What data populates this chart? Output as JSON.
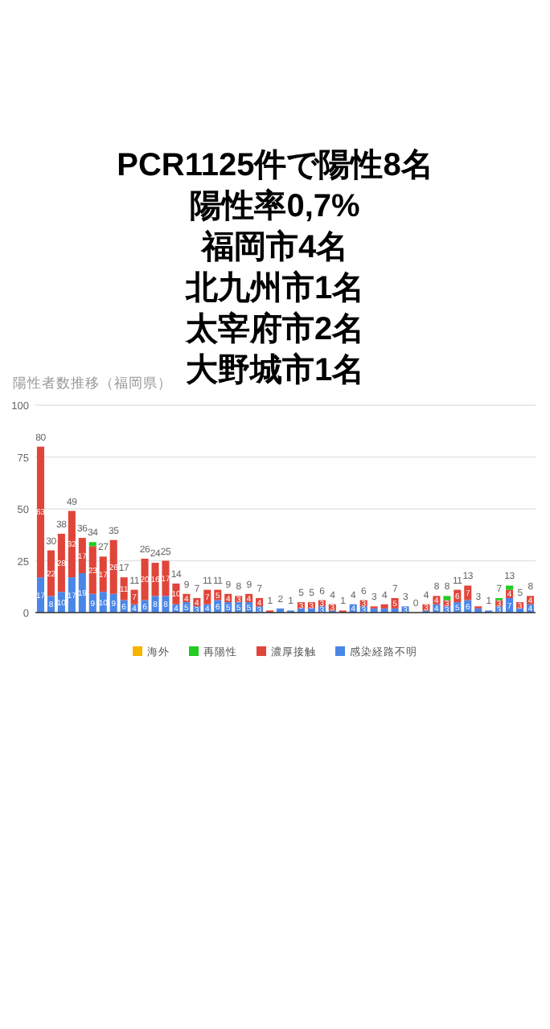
{
  "chart_data": {
    "type": "bar",
    "title": "PCR1125件で陽性8名",
    "annotations": [
      "陽性率0,7%",
      "福岡市4名",
      "北九州市1名",
      "太宰府市2名",
      "大野城市1名"
    ],
    "subtitle": "陽性者数推移（福岡県）",
    "categories": [
      null,
      null,
      null,
      null,
      null,
      null,
      null,
      null,
      null,
      null,
      null,
      null,
      null,
      null,
      null,
      null,
      null,
      null,
      null,
      null,
      null,
      null,
      null,
      null,
      null,
      null,
      null,
      null,
      null,
      null,
      null,
      null,
      null,
      null,
      null,
      null,
      null,
      null,
      null,
      null,
      null,
      null,
      null,
      null,
      null,
      null,
      null,
      null
    ],
    "stacked": true,
    "series": [
      {
        "name": "感染経路不明",
        "color": "#4a86e8",
        "values": [
          17,
          8,
          10,
          17,
          19,
          9,
          10,
          9,
          6,
          4,
          6,
          8,
          8,
          4,
          5,
          3,
          4,
          6,
          5,
          5,
          5,
          3,
          0,
          2,
          1,
          2,
          2,
          3,
          1,
          0,
          4,
          3,
          2,
          2,
          2,
          3,
          0,
          1,
          4,
          3,
          5,
          6,
          2,
          1,
          3,
          7,
          2,
          4
        ],
        "value_labels": [
          "17",
          "8",
          "10",
          "17",
          "19",
          "9",
          "10",
          "9",
          "6",
          "4",
          "6",
          "8",
          "8",
          "4",
          "5",
          "3",
          "4",
          "6",
          "5",
          "5",
          "5",
          "3",
          null,
          null,
          null,
          null,
          null,
          "3",
          null,
          null,
          "4",
          "3",
          null,
          null,
          null,
          "3",
          null,
          null,
          "4",
          "3",
          "5",
          "6",
          null,
          null,
          "3",
          "7",
          null,
          "4"
        ]
      },
      {
        "name": "濃厚接触",
        "color": "#e0453a",
        "values": [
          63,
          22,
          28,
          32,
          17,
          23,
          17,
          26,
          11,
          7,
          20,
          16,
          17,
          10,
          4,
          4,
          7,
          5,
          4,
          3,
          4,
          4,
          1,
          0,
          0,
          3,
          3,
          3,
          3,
          1,
          0,
          3,
          1,
          2,
          5,
          0,
          0,
          3,
          4,
          3,
          6,
          7,
          1,
          0,
          3,
          4,
          3,
          4
        ],
        "value_labels": [
          "63",
          "22",
          "28",
          "32",
          "17",
          "23",
          "17",
          "26",
          "11",
          "7",
          "20",
          "16",
          "17",
          "10",
          "4",
          "4",
          "7",
          "5",
          "4",
          "3",
          "4",
          "4",
          null,
          null,
          null,
          "3",
          "3",
          "3",
          "3",
          null,
          null,
          "3",
          null,
          null,
          "5",
          null,
          null,
          "3",
          "4",
          "3",
          "6",
          "7",
          null,
          null,
          "3",
          "4",
          "3",
          "4"
        ]
      },
      {
        "name": "再陽性",
        "color": "#22cc22",
        "values": [
          0,
          0,
          0,
          0,
          0,
          2,
          0,
          0,
          0,
          0,
          0,
          0,
          0,
          0,
          0,
          0,
          0,
          0,
          0,
          0,
          0,
          0,
          0,
          0,
          0,
          0,
          0,
          0,
          0,
          0,
          0,
          0,
          0,
          0,
          0,
          0,
          0,
          0,
          0,
          2,
          0,
          0,
          0,
          0,
          1,
          2,
          0,
          0
        ]
      },
      {
        "name": "海外",
        "color": "#f4b400",
        "values": [
          0,
          0,
          0,
          0,
          0,
          0,
          0,
          0,
          0,
          0,
          0,
          0,
          0,
          0,
          0,
          0,
          0,
          0,
          0,
          0,
          0,
          0,
          0,
          0,
          0,
          0,
          0,
          0,
          0,
          0,
          0,
          0,
          0,
          0,
          0,
          0,
          0,
          0,
          0,
          0,
          0,
          0,
          0,
          0,
          0,
          0,
          0,
          0
        ]
      }
    ],
    "totals": [
      "80",
      "30",
      "38",
      "49",
      "36",
      "34",
      "27",
      "35",
      "17",
      "11",
      "26",
      "24",
      "25",
      "14",
      "9",
      "7",
      "11",
      "11",
      "9",
      "8",
      "9",
      "7",
      "1",
      "2",
      "1",
      "5",
      "5",
      "6",
      "4",
      "1",
      "4",
      "6",
      "3",
      "4",
      "7",
      "3",
      "0",
      "4",
      "8",
      "8",
      "11",
      "13",
      "3",
      "1",
      "7",
      "13",
      "5",
      "8"
    ],
    "ylim": [
      0,
      100
    ],
    "yticks": [
      0,
      25,
      50,
      75,
      100
    ],
    "grid": "y",
    "legend": "bottom"
  }
}
